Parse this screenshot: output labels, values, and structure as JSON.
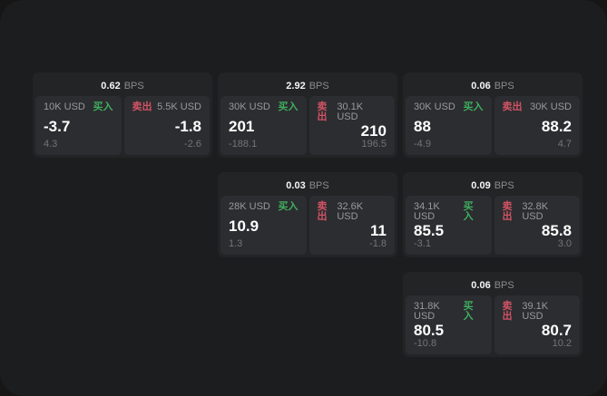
{
  "labels": {
    "bps_unit": "BPS",
    "buy": "买入",
    "sell": "卖出"
  },
  "colors": {
    "backdrop": "#161617",
    "window_bg": "#1c1d1e",
    "card_bg": "#232426",
    "panel_bg": "#2c2d30",
    "buy_green": "#3fae5f",
    "sell_red": "#d25364"
  },
  "cards": [
    {
      "col": 1,
      "row": 1,
      "bps": "0.62",
      "buy": {
        "amount": "10K USD",
        "value": "-3.7",
        "delta": "4.3"
      },
      "sell": {
        "amount": "5.5K USD",
        "value": "-1.8",
        "delta": "-2.6"
      }
    },
    {
      "col": 2,
      "row": 1,
      "bps": "2.92",
      "buy": {
        "amount": "30K USD",
        "value": "201",
        "delta": "-188.1"
      },
      "sell": {
        "amount": "30.1K USD",
        "value": "210",
        "delta": "196.5"
      }
    },
    {
      "col": 3,
      "row": 1,
      "bps": "0.06",
      "buy": {
        "amount": "30K USD",
        "value": "88",
        "delta": "-4.9"
      },
      "sell": {
        "amount": "30K USD",
        "value": "88.2",
        "delta": "4.7"
      }
    },
    {
      "col": 2,
      "row": 2,
      "bps": "0.03",
      "buy": {
        "amount": "28K USD",
        "value": "10.9",
        "delta": "1.3"
      },
      "sell": {
        "amount": "32.6K USD",
        "value": "11",
        "delta": "-1.8"
      }
    },
    {
      "col": 3,
      "row": 2,
      "bps": "0.09",
      "buy": {
        "amount": "34.1K USD",
        "value": "85.5",
        "delta": "-3.1"
      },
      "sell": {
        "amount": "32.8K USD",
        "value": "85.8",
        "delta": "3.0"
      }
    },
    {
      "col": 3,
      "row": 3,
      "bps": "0.06",
      "buy": {
        "amount": "31.8K USD",
        "value": "80.5",
        "delta": "-10.8"
      },
      "sell": {
        "amount": "39.1K USD",
        "value": "80.7",
        "delta": "10.2"
      }
    }
  ]
}
